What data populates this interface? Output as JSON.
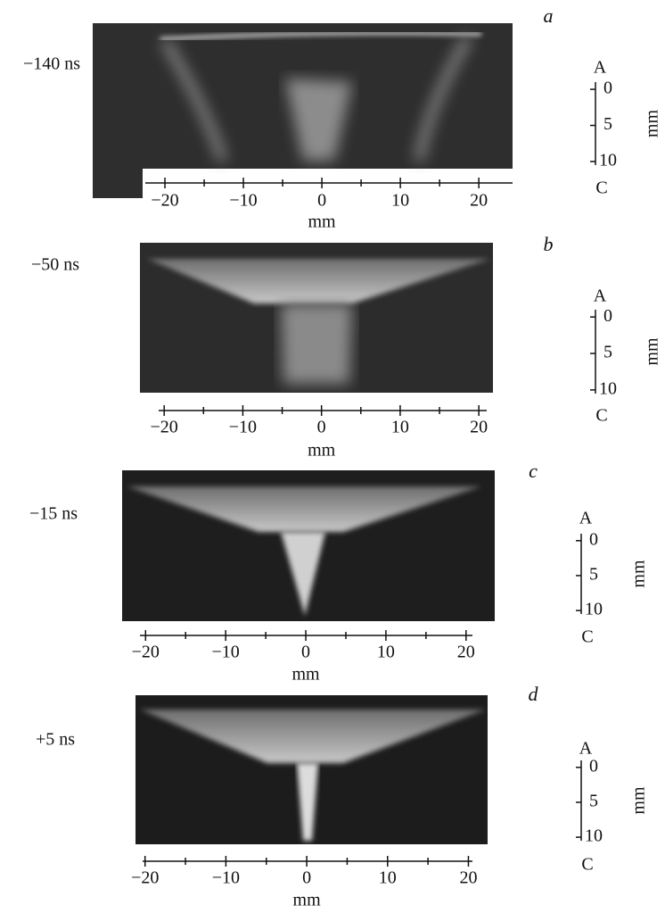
{
  "panels": [
    {
      "letter": "a",
      "time": "−140 ns",
      "x_axis": {
        "lim": [
          -22.5,
          24.3
        ],
        "ticks": [
          {
            "value": -20,
            "label": "−20"
          },
          {
            "value": -10,
            "label": "−10"
          },
          0,
          10,
          20
        ],
        "minor_ticks": [
          -15,
          -5,
          5,
          15
        ],
        "label": "mm"
      },
      "depth_axis": {
        "top": "A",
        "bottom": "C",
        "lim": [
          -1,
          10.5
        ],
        "ticks": [
          0,
          5,
          10
        ],
        "label": "mm"
      }
    },
    {
      "letter": "b",
      "time": "−50 ns",
      "x_axis": {
        "lim": [
          -20.7,
          21
        ],
        "ticks": [
          {
            "value": -20,
            "label": "−20"
          },
          {
            "value": -10,
            "label": "−10"
          },
          0,
          10,
          20
        ],
        "minor_ticks": [
          -15,
          -5,
          5,
          15
        ],
        "label": "mm"
      },
      "depth_axis": {
        "top": "A",
        "bottom": "C",
        "lim": [
          -1,
          10.5
        ],
        "ticks": [
          0,
          5,
          10
        ],
        "label": "mm"
      }
    },
    {
      "letter": "c",
      "time": "−15 ns",
      "x_axis": {
        "lim": [
          -20.7,
          20.8
        ],
        "ticks": [
          {
            "value": -20,
            "label": "−20"
          },
          {
            "value": -10,
            "label": "−10"
          },
          0,
          10,
          20
        ],
        "minor_ticks": [
          -15,
          -5,
          5,
          15
        ],
        "label": "mm"
      },
      "depth_axis": {
        "top": "A",
        "bottom": "C",
        "lim": [
          -1,
          10.5
        ],
        "ticks": [
          0,
          5,
          10
        ],
        "label": "mm"
      }
    },
    {
      "letter": "d",
      "time": "+5 ns",
      "x_axis": {
        "lim": [
          -20.3,
          20.5
        ],
        "ticks": [
          {
            "value": -20,
            "label": "−20"
          },
          {
            "value": -10,
            "label": "−10"
          },
          0,
          10,
          20
        ],
        "minor_ticks": [
          -15,
          -5,
          5,
          15
        ],
        "label": "mm"
      },
      "depth_axis": {
        "top": "A",
        "bottom": "C",
        "lim": [
          -1,
          10.5
        ],
        "ticks": [
          0,
          5,
          10
        ],
        "label": "mm"
      }
    }
  ]
}
